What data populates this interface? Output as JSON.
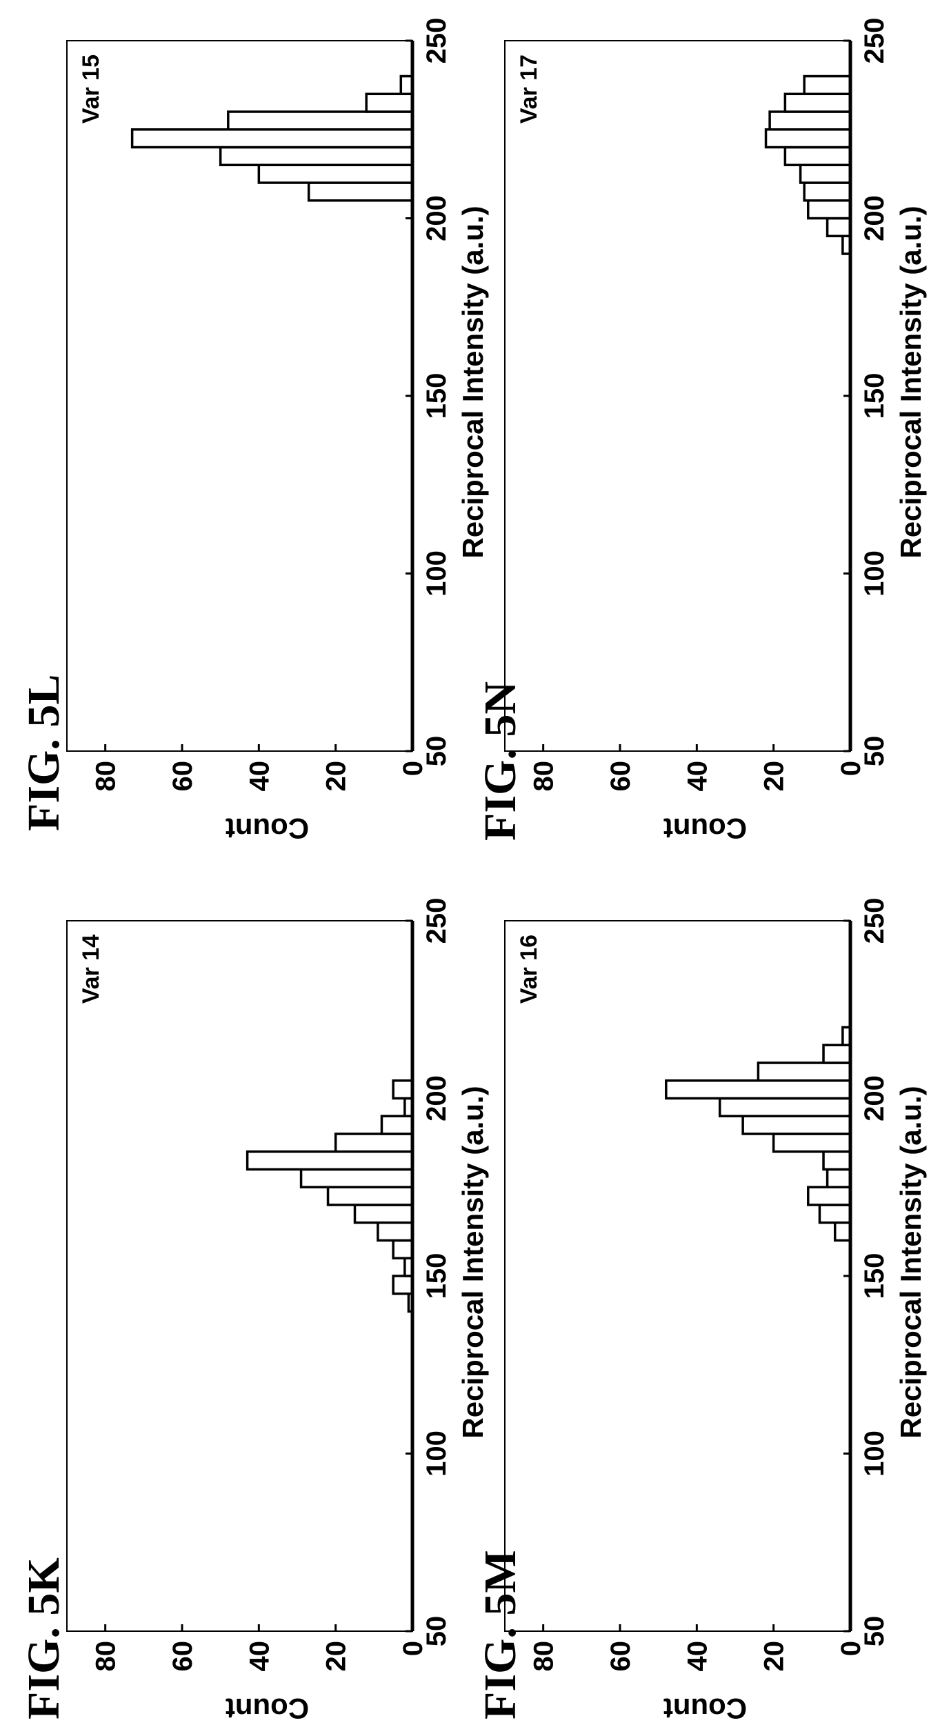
{
  "figures": [
    {
      "label": "FIG. 5K"
    },
    {
      "label": "FIG. 5L"
    },
    {
      "label": "FIG. 5M"
    },
    {
      "label": "FIG. 5N"
    }
  ],
  "chart_data": [
    {
      "type": "bar",
      "panel_label": "Var 14",
      "xlabel": "Reciprocal Intensity (a.u.)",
      "ylabel": "Count",
      "xlim": [
        50,
        250
      ],
      "ylim": [
        0,
        90
      ],
      "xticks": [
        50,
        100,
        150,
        200,
        250
      ],
      "yticks": [
        0,
        20,
        40,
        60,
        80
      ],
      "bin_width": 5,
      "x": [
        140,
        145,
        150,
        155,
        160,
        165,
        170,
        175,
        180,
        185,
        190,
        195,
        200
      ],
      "values": [
        1,
        5,
        2,
        5,
        9,
        15,
        22,
        29,
        43,
        20,
        8,
        2,
        5
      ],
      "grid": false
    },
    {
      "type": "bar",
      "panel_label": "Var 15",
      "xlabel": "Reciprocal Intensity (a.u.)",
      "ylabel": "Count",
      "xlim": [
        50,
        250
      ],
      "ylim": [
        0,
        90
      ],
      "xticks": [
        50,
        100,
        150,
        200,
        250
      ],
      "yticks": [
        0,
        20,
        40,
        60,
        80
      ],
      "bin_width": 5,
      "x": [
        205,
        210,
        215,
        220,
        225,
        230,
        235
      ],
      "values": [
        27,
        40,
        50,
        73,
        48,
        12,
        3
      ],
      "grid": false
    },
    {
      "type": "bar",
      "panel_label": "Var 16",
      "xlabel": "Reciprocal Intensity (a.u.)",
      "ylabel": "Count",
      "xlim": [
        50,
        250
      ],
      "ylim": [
        0,
        90
      ],
      "xticks": [
        50,
        100,
        150,
        200,
        250
      ],
      "yticks": [
        0,
        20,
        40,
        60,
        80
      ],
      "bin_width": 5,
      "x": [
        160,
        165,
        170,
        175,
        180,
        185,
        190,
        195,
        200,
        205,
        210,
        215
      ],
      "values": [
        4,
        8,
        11,
        6,
        7,
        20,
        28,
        34,
        48,
        24,
        7,
        2
      ],
      "grid": false
    },
    {
      "type": "bar",
      "panel_label": "Var 17",
      "xlabel": "Reciprocal Intensity (a.u.)",
      "ylabel": "Count",
      "xlim": [
        50,
        250
      ],
      "ylim": [
        0,
        90
      ],
      "xticks": [
        50,
        100,
        150,
        200,
        250
      ],
      "yticks": [
        0,
        20,
        40,
        60,
        80
      ],
      "bin_width": 5,
      "x": [
        190,
        195,
        200,
        205,
        210,
        215,
        220,
        225,
        230,
        235
      ],
      "values": [
        2,
        6,
        11,
        12,
        13,
        17,
        22,
        21,
        17,
        12
      ],
      "grid": false
    }
  ]
}
